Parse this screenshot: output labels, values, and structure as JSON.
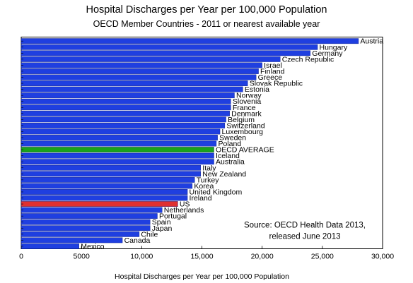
{
  "chart_data": {
    "type": "bar",
    "orientation": "horizontal",
    "title": "Hospital Discharges per Year per 100,000 Population",
    "subtitle": "OECD Member Countries - 2011 or nearest available year",
    "xlabel": "Hospital Discharges per Year per 100,000 Population",
    "ylabel": "",
    "xlim": [
      0,
      30000
    ],
    "xticks": [
      0,
      5000,
      10000,
      15000,
      20000,
      25000,
      30000
    ],
    "xtick_labels": [
      "0",
      "5000",
      "10,000",
      "15,000",
      "20,000",
      "25,000",
      "30,000"
    ],
    "grid": false,
    "categories": [
      "Austria",
      "Hungary",
      "Germany",
      "Czech Republic",
      "Israel",
      "Finland",
      "Greece",
      "Slovak Republic",
      "Estonia",
      "Norway",
      "Slovenia",
      "France",
      "Denmark",
      "Belgium",
      "Switzerland",
      "Luxembourg",
      "Sweden",
      "Poland",
      "OECD AVERAGE",
      "Iceland",
      "Australia",
      "Italy",
      "New Zealand",
      "Turkey",
      "Korea",
      "United Kingdom",
      "Ireland",
      "US",
      "Netherlands",
      "Portugal",
      "Spain",
      "Japan",
      "Chile",
      "Canada",
      "Mexico"
    ],
    "values": [
      28000,
      24600,
      24000,
      21500,
      20000,
      19700,
      19500,
      18800,
      18400,
      17700,
      17400,
      17400,
      17300,
      17000,
      16900,
      16500,
      16300,
      16200,
      16000,
      16000,
      16000,
      14900,
      14900,
      14400,
      14200,
      13800,
      13800,
      13000,
      11700,
      11300,
      10700,
      10700,
      9800,
      8400,
      4800
    ],
    "highlight": {
      "OECD AVERAGE": "#1aa31a",
      "US": "#e03030"
    },
    "colors": {
      "default": "#1f3fe0",
      "bar_edge": "#0a1a80"
    },
    "annotation": [
      "Source:  OECD Health Data 2013,",
      "released June 2013"
    ]
  }
}
